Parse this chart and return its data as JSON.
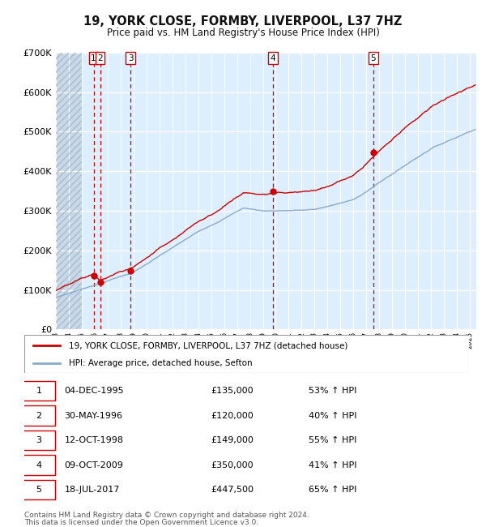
{
  "title": "19, YORK CLOSE, FORMBY, LIVERPOOL, L37 7HZ",
  "subtitle": "Price paid vs. HM Land Registry's House Price Index (HPI)",
  "sales": [
    {
      "num": 1,
      "date_f": 1995.917,
      "price": 135000,
      "label": "04-DEC-1995",
      "pct": "53%",
      "dir": "↑"
    },
    {
      "num": 2,
      "date_f": 1996.413,
      "price": 120000,
      "label": "30-MAY-1996",
      "pct": "40%",
      "dir": "↑"
    },
    {
      "num": 3,
      "date_f": 1998.783,
      "price": 149000,
      "label": "12-OCT-1998",
      "pct": "55%",
      "dir": "↑"
    },
    {
      "num": 4,
      "date_f": 2009.775,
      "price": 350000,
      "label": "09-OCT-2009",
      "pct": "41%",
      "dir": "↑"
    },
    {
      "num": 5,
      "date_f": 2017.544,
      "price": 447500,
      "label": "18-JUL-2017",
      "pct": "65%",
      "dir": "↑"
    }
  ],
  "hpi_color": "#88aacc",
  "price_color": "#cc0000",
  "vline_color": "#cc0000",
  "background_color": "#ddeeff",
  "grid_color": "#ffffff",
  "ylim": [
    0,
    700000
  ],
  "yticks": [
    0,
    100000,
    200000,
    300000,
    400000,
    500000,
    600000,
    700000
  ],
  "footnote1": "Contains HM Land Registry data © Crown copyright and database right 2024.",
  "footnote2": "This data is licensed under the Open Government Licence v3.0.",
  "legend_label_red": "19, YORK CLOSE, FORMBY, LIVERPOOL, L37 7HZ (detached house)",
  "legend_label_blue": "HPI: Average price, detached house, Sefton",
  "xmin": 1993.0,
  "xmax": 2025.5,
  "hatch_end": 1995.0
}
